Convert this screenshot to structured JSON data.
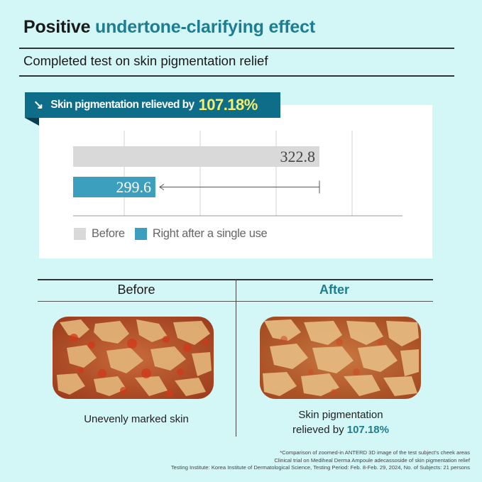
{
  "title": {
    "main": "Positive",
    "accent": "undertone-clarifying effect"
  },
  "subtitle": "Completed test on skin pigmentation relief",
  "banner": {
    "arrow": "↘",
    "text": "Skin pigmentation relieved by",
    "value": "107.18%"
  },
  "chart_data": {
    "type": "bar",
    "orientation": "horizontal",
    "categories": [
      "Before",
      "Right after a single use"
    ],
    "values": [
      322.8,
      299.6
    ],
    "labels": [
      "322.8",
      "299.6"
    ],
    "colors": [
      "#d9d9d9",
      "#3c9fbd"
    ],
    "xlim": [
      0,
      400
    ],
    "grid": true,
    "legend": "bottom-left",
    "annotation": "bracket from 299.6 to 322.8"
  },
  "legend": [
    {
      "label": "Before",
      "color": "#d9d9d9"
    },
    {
      "label": "Right after a single use",
      "color": "#3c9fbd"
    }
  ],
  "comparison": {
    "before_header": "Before",
    "after_header": "After",
    "before_caption": "Unevenly marked skin",
    "after_caption_line1": "Skin pigmentation",
    "after_caption_line2": "relieved by",
    "after_caption_value": "107.18%"
  },
  "footnotes": [
    "*Comparison of zoomed-in ANTERD 3D image of the test subject's cheek areas",
    "Clinical trial on Mediheal Derma Ampoule adecassoside of skin pigmentation relief",
    "Testing Institute: Korea Institute of Dermatological Science, Testing Period: Feb. 8-Feb. 29, 2024, No. of Subjects: 21 persons"
  ]
}
